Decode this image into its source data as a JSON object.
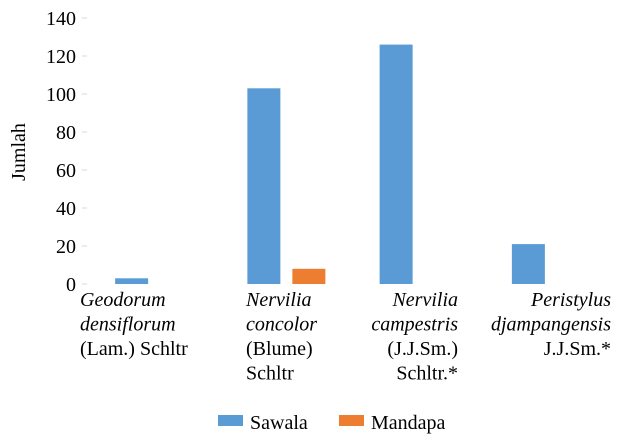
{
  "chart_data": {
    "type": "bar",
    "ylabel": "Jumlah",
    "ylim": [
      0,
      140
    ],
    "yticks": [
      0,
      20,
      40,
      60,
      80,
      100,
      120,
      140
    ],
    "grid": false,
    "legend_position": "bottom",
    "categories": [
      {
        "lines": [
          {
            "text": "Geodorum",
            "italic": true
          },
          {
            "text": "densiflorum",
            "italic": true
          },
          {
            "text": "(Lam.) Schltr",
            "italic": false
          }
        ],
        "align": "start"
      },
      {
        "lines": [
          {
            "text": "Nervilia",
            "italic": true
          },
          {
            "text": "concolor",
            "italic": true
          },
          {
            "text": "(Blume)",
            "italic": false
          },
          {
            "text": "Schltr",
            "italic": false
          }
        ],
        "align": "start"
      },
      {
        "lines": [
          {
            "text": "Nervilia",
            "italic": true
          },
          {
            "text": "campestris",
            "italic": true
          },
          {
            "text": "(J.J.Sm.)",
            "italic": false
          },
          {
            "text": "Schltr.*",
            "italic": false
          }
        ],
        "align": "end"
      },
      {
        "lines": [
          {
            "text": "Peristylus",
            "italic": true
          },
          {
            "text": "djampangensis",
            "italic": true
          },
          {
            "text": "J.J.Sm.*",
            "italic": false
          }
        ],
        "align": "end"
      }
    ],
    "series": [
      {
        "name": "Sawala",
        "color": "#5B9BD5",
        "values": [
          3,
          103,
          126,
          21
        ]
      },
      {
        "name": "Mandapa",
        "color": "#ED7D31",
        "values": [
          0,
          8,
          0,
          0
        ]
      }
    ]
  }
}
